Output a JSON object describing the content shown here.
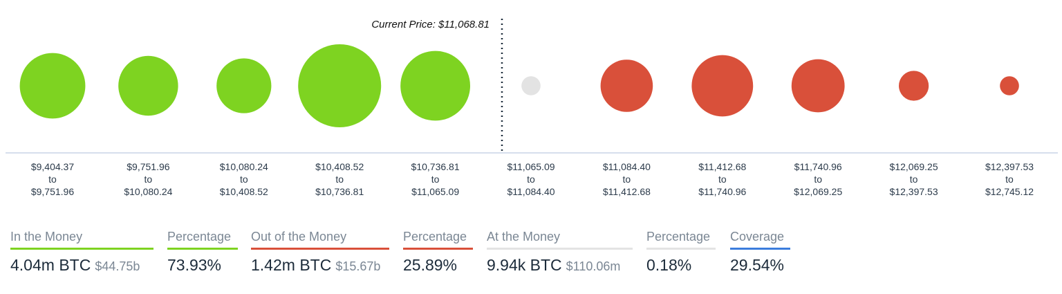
{
  "chart_data": {
    "type": "bubble",
    "annotation": "Current Price: $11,068.81",
    "current_price": 11068.81,
    "colors": {
      "in_the_money": "#7ed321",
      "out_of_the_money": "#d9503a",
      "at_the_money": "#e3e3e3",
      "baseline": "#c9d3e6",
      "axis_text": "#2b3a4a"
    },
    "bins": [
      {
        "from": "$9,404.37",
        "to": "$9,751.96",
        "status": "in_the_money",
        "relative_size": 0.79
      },
      {
        "from": "$9,751.96",
        "to": "$10,080.24",
        "status": "in_the_money",
        "relative_size": 0.72
      },
      {
        "from": "$10,080.24",
        "to": "$10,408.52",
        "status": "in_the_money",
        "relative_size": 0.66
      },
      {
        "from": "$10,408.52",
        "to": "$10,736.81",
        "status": "in_the_money",
        "relative_size": 1.0
      },
      {
        "from": "$10,736.81",
        "to": "$11,065.09",
        "status": "in_the_money",
        "relative_size": 0.84
      },
      {
        "from": "$11,065.09",
        "to": "$11,084.40",
        "status": "at_the_money",
        "relative_size": 0.23
      },
      {
        "from": "$11,084.40",
        "to": "$11,412.68",
        "status": "out_of_the_money",
        "relative_size": 0.63
      },
      {
        "from": "$11,412.68",
        "to": "$11,740.96",
        "status": "out_of_the_money",
        "relative_size": 0.74
      },
      {
        "from": "$11,740.96",
        "to": "$12,069.25",
        "status": "out_of_the_money",
        "relative_size": 0.64
      },
      {
        "from": "$12,069.25",
        "to": "$12,397.53",
        "status": "out_of_the_money",
        "relative_size": 0.36
      },
      {
        "from": "$12,397.53",
        "to": "$12,745.12",
        "status": "out_of_the_money",
        "relative_size": 0.23
      }
    ],
    "to_word": "to"
  },
  "stats": [
    {
      "label": "In the Money",
      "value": "4.04m BTC",
      "sub": "$44.75b",
      "color": "#7ed321"
    },
    {
      "label": "Percentage",
      "value": "73.93%",
      "sub": "",
      "color": "#7ed321"
    },
    {
      "label": "Out of the Money",
      "value": "1.42m BTC",
      "sub": "$15.67b",
      "color": "#d9503a"
    },
    {
      "label": "Percentage",
      "value": "25.89%",
      "sub": "",
      "color": "#d9503a"
    },
    {
      "label": "At the Money",
      "value": "9.94k BTC",
      "sub": "$110.06m",
      "color": "#e3e3e3"
    },
    {
      "label": "Percentage",
      "value": "0.18%",
      "sub": "",
      "color": "#e3e3e3"
    },
    {
      "label": "Coverage",
      "value": "29.54%",
      "sub": "",
      "color": "#3b7ddd"
    }
  ]
}
